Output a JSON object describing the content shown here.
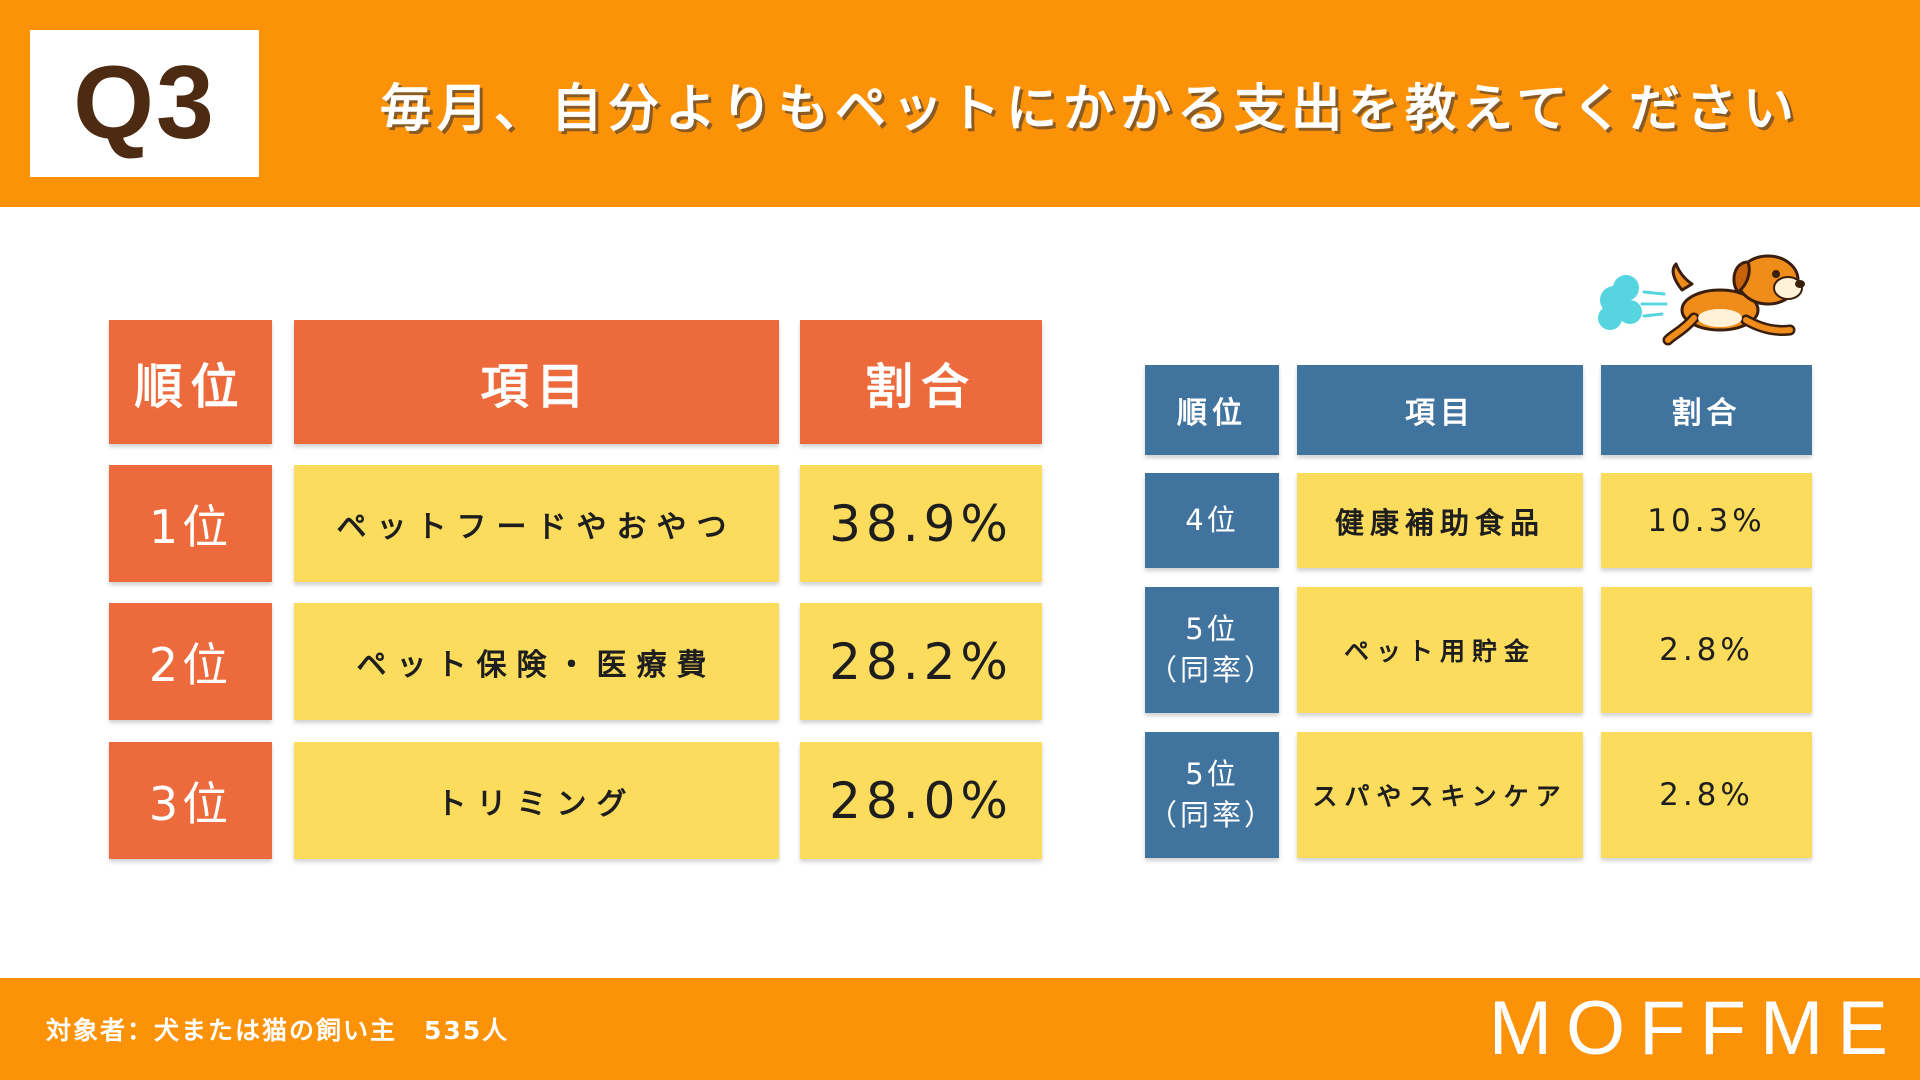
{
  "header": {
    "question_label": "Q3",
    "title": "毎月、自分よりもペットにかかる支出を教えてください"
  },
  "colors": {
    "brand_orange": "#fc9207",
    "top_table_header": "#ed6a3c",
    "cell_yellow": "#fcdc5d",
    "lower_table_header": "#41739f"
  },
  "chart_data": {
    "type": "table",
    "title": "毎月、自分よりもペットにかかる支出を教えてください",
    "columns": [
      "順位",
      "項目",
      "割合"
    ],
    "rows": [
      {
        "rank": "1位",
        "item": "ペットフードやおやつ",
        "percent": "38.9%",
        "value": 38.9
      },
      {
        "rank": "2位",
        "item": "ペット保険・医療費",
        "percent": "28.2%",
        "value": 28.2
      },
      {
        "rank": "3位",
        "item": "トリミング",
        "percent": "28.0%",
        "value": 28.0
      },
      {
        "rank": "4位",
        "item": "健康補助食品",
        "percent": "10.3%",
        "value": 10.3
      },
      {
        "rank": "5位",
        "rank_note": "（同率）",
        "item": "ペット用貯金",
        "percent": "2.8%",
        "value": 2.8
      },
      {
        "rank": "5位",
        "rank_note": "（同率）",
        "item": "スパやスキンケア",
        "percent": "2.8%",
        "value": 2.8
      }
    ]
  },
  "icons": {
    "illustration": "running-dog-icon"
  },
  "footer": {
    "target_text": "対象者：犬または猫の飼い主　535人",
    "brand": "MOFFME"
  }
}
